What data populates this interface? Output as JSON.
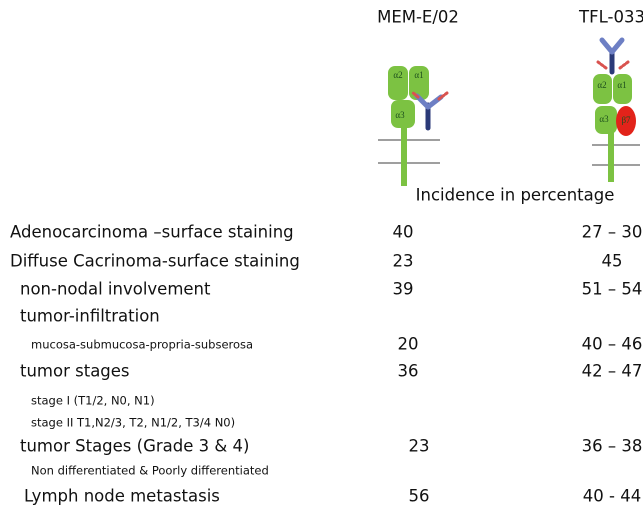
{
  "header": {
    "antibodies": [
      "MEM-E/02",
      "TFL-033"
    ],
    "subtitle": "Incidence in percentage"
  },
  "diagrams": [
    {
      "labels": [
        "α2",
        "α1",
        "α3"
      ]
    },
    {
      "labels": [
        "α2",
        "α1",
        "α3",
        "β7"
      ]
    }
  ],
  "table": {
    "rows": [
      {
        "label": "Adenocarcinoma –surface staining",
        "mem": "40",
        "tfl": "27 – 30"
      },
      {
        "label": "Diffuse Cacrinoma-surface staining",
        "mem": "23",
        "tfl": "45"
      },
      {
        "label": "non-nodal involvement",
        "mem": "39",
        "tfl": "51 – 54"
      },
      {
        "label": "tumor-infiltration"
      },
      {
        "label": "mucosa-submucosa-propria-subserosa",
        "mem": "20",
        "tfl": "40 – 46"
      },
      {
        "label": "tumor stages",
        "mem": "36",
        "tfl": "42 – 47"
      },
      {
        "label": "stage I (T1/2, N0, N1)"
      },
      {
        "label": "stage II T1,N2/3, T2, N1/2, T3/4 N0)"
      },
      {
        "label": "tumor Stages (Grade 3 & 4)",
        "mem": "23",
        "tfl": "36 – 38"
      },
      {
        "label": "Non differentiated & Poorly differentiated"
      },
      {
        "label": "Lymph node metastasis",
        "mem": "56",
        "tfl": "40 - 44"
      }
    ]
  }
}
